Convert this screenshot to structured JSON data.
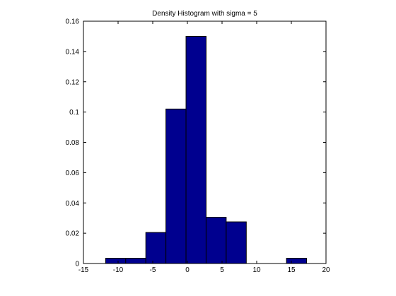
{
  "chart_data": {
    "type": "bar",
    "title": "Density Histogram with sigma = 5",
    "xlabel": "",
    "ylabel": "",
    "xlim": [
      -15,
      20
    ],
    "ylim": [
      0,
      0.16
    ],
    "x_ticks": [
      -15,
      -10,
      -5,
      0,
      5,
      10,
      15,
      20
    ],
    "x_tick_labels": [
      "-15",
      "-10",
      "-5",
      "0",
      "5",
      "10",
      "15",
      "20"
    ],
    "y_ticks": [
      0,
      0.02,
      0.04,
      0.06,
      0.08,
      0.1,
      0.12,
      0.14,
      0.16
    ],
    "y_tick_labels": [
      "0",
      "0.02",
      "0.04",
      "0.06",
      "0.08",
      "0.1",
      "0.12",
      "0.14",
      "0.16"
    ],
    "bins": [
      {
        "x0": -11.8,
        "x1": -8.9,
        "value": 0.0035
      },
      {
        "x0": -8.9,
        "x1": -6.0,
        "value": 0.0035
      },
      {
        "x0": -6.0,
        "x1": -3.1,
        "value": 0.0205
      },
      {
        "x0": -3.1,
        "x1": -0.2,
        "value": 0.102
      },
      {
        "x0": -0.2,
        "x1": 2.7,
        "value": 0.15
      },
      {
        "x0": 2.7,
        "x1": 5.6,
        "value": 0.0305
      },
      {
        "x0": 5.6,
        "x1": 8.5,
        "value": 0.0275
      },
      {
        "x0": 8.5,
        "x1": 11.4,
        "value": 0
      },
      {
        "x0": 11.4,
        "x1": 14.3,
        "value": 0
      },
      {
        "x0": 14.3,
        "x1": 17.2,
        "value": 0.0035
      }
    ],
    "grid": false,
    "legend": "none",
    "colors": {
      "bar_fill": "#00008f",
      "bar_edge": "#000000",
      "axes": "#000000",
      "background": "#ffffff"
    }
  }
}
